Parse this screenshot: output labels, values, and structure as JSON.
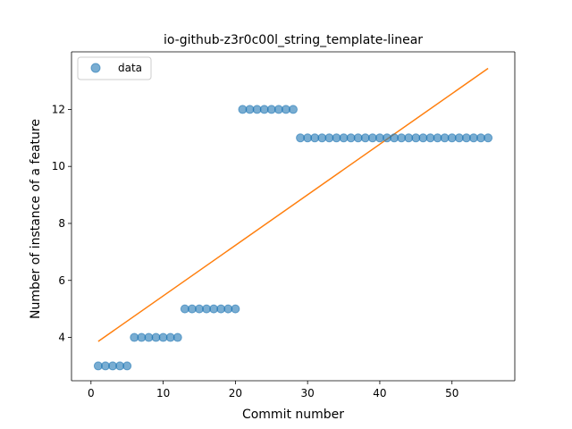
{
  "chart_data": {
    "type": "scatter",
    "title": "io-github-z3r0c00l_string_template-linear",
    "xlabel": "Commit number",
    "ylabel": "Number of instance of a feature",
    "xlim": [
      -2.7,
      58.7
    ],
    "ylim": [
      2.48,
      14.02
    ],
    "xticks": [
      0,
      10,
      20,
      30,
      40,
      50
    ],
    "yticks": [
      4,
      6,
      8,
      10,
      12
    ],
    "grid": false,
    "legend": {
      "position": "top-left",
      "entries": [
        "data"
      ]
    },
    "series": [
      {
        "name": "data",
        "kind": "scatter",
        "color": "#1f77b4",
        "x": [
          1,
          2,
          3,
          4,
          5,
          6,
          7,
          8,
          9,
          10,
          11,
          12,
          13,
          14,
          15,
          16,
          17,
          18,
          19,
          20,
          21,
          22,
          23,
          24,
          25,
          26,
          27,
          28,
          29,
          30,
          31,
          32,
          33,
          34,
          35,
          36,
          37,
          38,
          39,
          40,
          41,
          42,
          43,
          44,
          45,
          46,
          47,
          48,
          49,
          50,
          51,
          52,
          53,
          54,
          55
        ],
        "y": [
          3,
          3,
          3,
          3,
          3,
          4,
          4,
          4,
          4,
          4,
          4,
          4,
          5,
          5,
          5,
          5,
          5,
          5,
          5,
          5,
          12,
          12,
          12,
          12,
          12,
          12,
          12,
          12,
          11,
          11,
          11,
          11,
          11,
          11,
          11,
          11,
          11,
          11,
          11,
          11,
          11,
          11,
          11,
          11,
          11,
          11,
          11,
          11,
          11,
          11,
          11,
          11,
          11,
          11,
          11
        ]
      },
      {
        "kind": "line",
        "color": "#ff7f0e",
        "x": [
          1,
          55
        ],
        "y": [
          3.86,
          13.44
        ]
      }
    ]
  }
}
